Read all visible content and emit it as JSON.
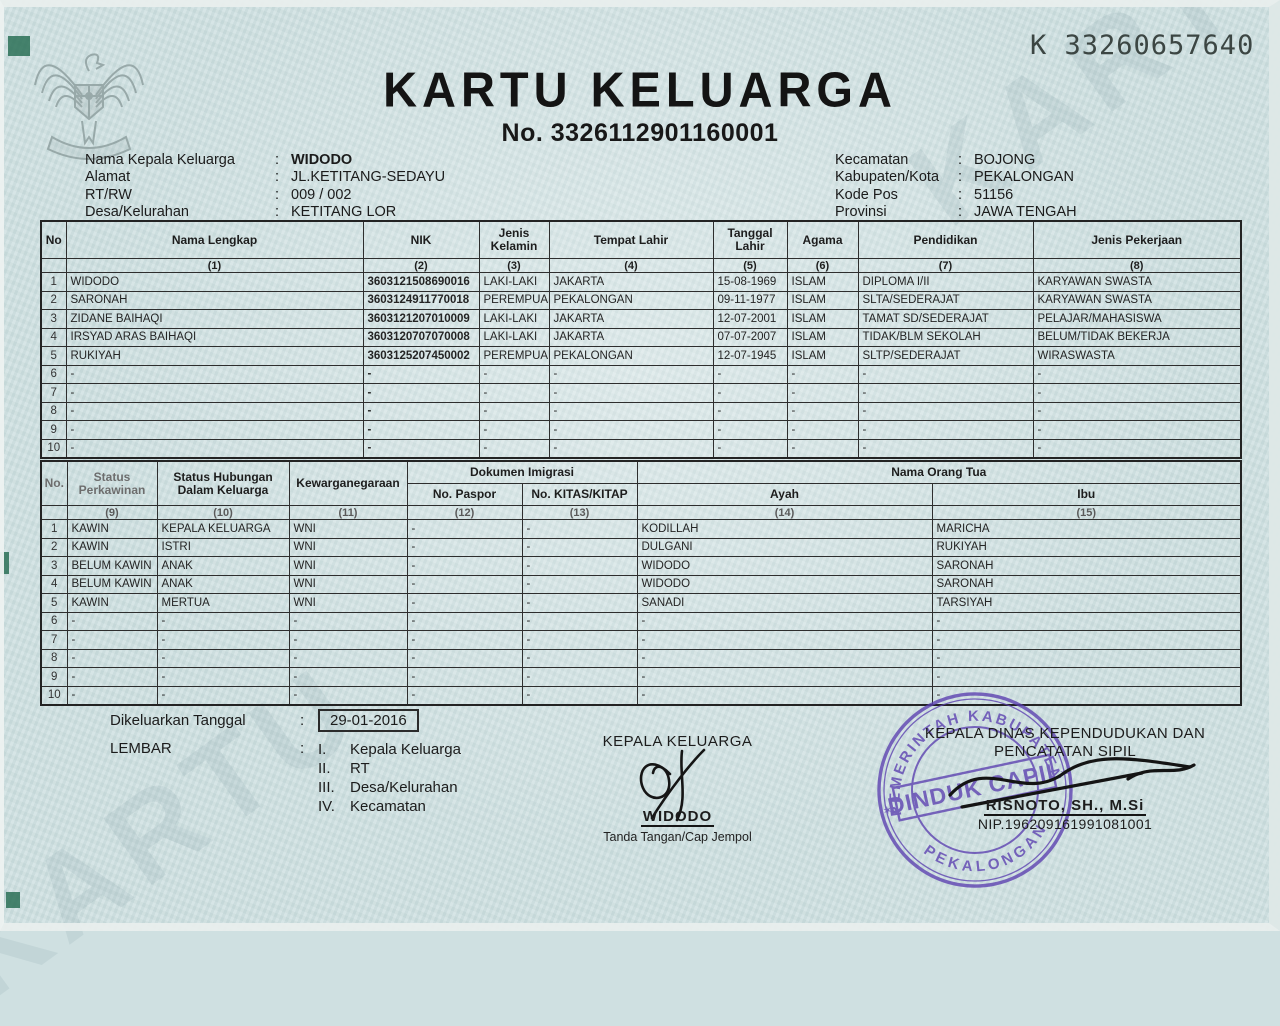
{
  "meta": {
    "serial": "K 33260657640",
    "title": "KARTU KELUARGA",
    "number": "No. 3326112901160001",
    "watermark": "KARTU",
    "colon": ":"
  },
  "colors": {
    "paper": "#cfe0e1",
    "stamp_purple": "#5b3fb0",
    "corner_green": "#20694d",
    "ink": "#1c1c1c"
  },
  "info_left": [
    {
      "label": "Nama Kepala Keluarga",
      "value": "WIDODO",
      "bold": true
    },
    {
      "label": "Alamat",
      "value": "JL.KETITANG-SEDAYU"
    },
    {
      "label": "RT/RW",
      "value": "009 / 002"
    },
    {
      "label": "Desa/Kelurahan",
      "value": "KETITANG LOR"
    }
  ],
  "info_right": [
    {
      "label": "Kecamatan",
      "value": "BOJONG"
    },
    {
      "label": "Kabupaten/Kota",
      "value": "PEKALONGAN"
    },
    {
      "label": "Kode Pos",
      "value": "51156"
    },
    {
      "label": "Provinsi",
      "value": "JAWA TENGAH"
    }
  ],
  "table1": {
    "head": [
      [
        "No",
        "Nama Lengkap",
        "NIK",
        "Jenis Kelamin",
        "Tempat Lahir",
        "Tanggal Lahir",
        "Agama",
        "Pendidikan",
        "Jenis Pekerjaan"
      ],
      [
        "",
        "(1)",
        "(2)",
        "(3)",
        "(4)",
        "(5)",
        "(6)",
        "(7)",
        "(8)"
      ]
    ],
    "rows": [
      [
        "1",
        "WIDODO",
        "3603121508690016",
        "LAKI-LAKI",
        "JAKARTA",
        "15-08-1969",
        "ISLAM",
        "DIPLOMA I/II",
        "KARYAWAN SWASTA"
      ],
      [
        "2",
        "SARONAH",
        "3603124911770018",
        "PEREMPUAN",
        "PEKALONGAN",
        "09-11-1977",
        "ISLAM",
        "SLTA/SEDERAJAT",
        "KARYAWAN SWASTA"
      ],
      [
        "3",
        "ZIDANE BAIHAQI",
        "3603121207010009",
        "LAKI-LAKI",
        "JAKARTA",
        "12-07-2001",
        "ISLAM",
        "TAMAT SD/SEDERAJAT",
        "PELAJAR/MAHASISWA"
      ],
      [
        "4",
        "IRSYAD ARAS BAIHAQI",
        "3603120707070008",
        "LAKI-LAKI",
        "JAKARTA",
        "07-07-2007",
        "ISLAM",
        "TIDAK/BLM SEKOLAH",
        "BELUM/TIDAK BEKERJA"
      ],
      [
        "5",
        "RUKIYAH",
        "3603125207450002",
        "PEREMPUAN",
        "PEKALONGAN",
        "12-07-1945",
        "ISLAM",
        "SLTP/SEDERAJAT",
        "WIRASWASTA"
      ],
      [
        "6",
        "-",
        "-",
        "-",
        "-",
        "-",
        "-",
        "-",
        "-"
      ],
      [
        "7",
        "-",
        "-",
        "-",
        "-",
        "-",
        "-",
        "-",
        "-"
      ],
      [
        "8",
        "-",
        "-",
        "-",
        "-",
        "-",
        "-",
        "-",
        "-"
      ],
      [
        "9",
        "-",
        "-",
        "-",
        "-",
        "-",
        "-",
        "-",
        "-"
      ],
      [
        "10",
        "-",
        "-",
        "-",
        "-",
        "-",
        "-",
        "-",
        "-"
      ]
    ]
  },
  "table2": {
    "head": [
      [
        {
          "t": "No.",
          "rs": 2
        },
        {
          "t": "Status Perkawinan",
          "rs": 2
        },
        {
          "t": "Status Hubungan Dalam Keluarga",
          "rs": 2
        },
        {
          "t": "Kewarganegaraan",
          "rs": 2
        },
        {
          "t": "Dokumen Imigrasi",
          "cs": 2
        },
        {
          "t": "Nama Orang Tua",
          "cs": 2
        }
      ],
      [
        "No. Paspor",
        "No. KITAS/KITAP",
        "Ayah",
        "Ibu"
      ],
      [
        "",
        "(9)",
        "(10)",
        "(11)",
        "(12)",
        "(13)",
        "(14)",
        "(15)"
      ]
    ],
    "rows": [
      [
        "1",
        "KAWIN",
        "KEPALA KELUARGA",
        "WNI",
        "-",
        "-",
        "KODILLAH",
        "MARICHA"
      ],
      [
        "2",
        "KAWIN",
        "ISTRI",
        "WNI",
        "-",
        "-",
        "DULGANI",
        "RUKIYAH"
      ],
      [
        "3",
        "BELUM KAWIN",
        "ANAK",
        "WNI",
        "-",
        "-",
        "WIDODO",
        "SARONAH"
      ],
      [
        "4",
        "BELUM KAWIN",
        "ANAK",
        "WNI",
        "-",
        "-",
        "WIDODO",
        "SARONAH"
      ],
      [
        "5",
        "KAWIN",
        "MERTUA",
        "WNI",
        "-",
        "-",
        "SANADI",
        "TARSIYAH"
      ],
      [
        "6",
        "-",
        "-",
        "-",
        "-",
        "-",
        "-",
        "-"
      ],
      [
        "7",
        "-",
        "-",
        "-",
        "-",
        "-",
        "-",
        "-"
      ],
      [
        "8",
        "-",
        "-",
        "-",
        "-",
        "-",
        "-",
        "-"
      ],
      [
        "9",
        "-",
        "-",
        "-",
        "-",
        "-",
        "-",
        "-"
      ],
      [
        "10",
        "-",
        "-",
        "-",
        "-",
        "-",
        "-",
        "-"
      ]
    ]
  },
  "footer": {
    "issued_label": "Dikeluarkan Tanggal",
    "issued_date": "29-01-2016",
    "lembar_label": "LEMBAR",
    "lembar_items": [
      {
        "num": "I.",
        "label": "Kepala Keluarga"
      },
      {
        "num": "II.",
        "label": "RT"
      },
      {
        "num": "III.",
        "label": "Desa/Kelurahan"
      },
      {
        "num": "IV.",
        "label": "Kecamatan"
      }
    ],
    "center": {
      "title": "KEPALA KELUARGA",
      "name": "WIDODO",
      "caption": "Tanda Tangan/Cap Jempol"
    },
    "right": {
      "title_line1": "KEPALA DINAS KEPENDUDUKAN DAN",
      "title_line2": "PENCATATAN SIPIL",
      "name": "RISNOTO, SH., M.Si",
      "nip": "NIP.196209161991081001",
      "stamp_top": "PEMERINTAH KABUPATEN",
      "stamp_center": "DINDUK CAPIL",
      "stamp_bottom": "PEKALONGAN"
    }
  }
}
